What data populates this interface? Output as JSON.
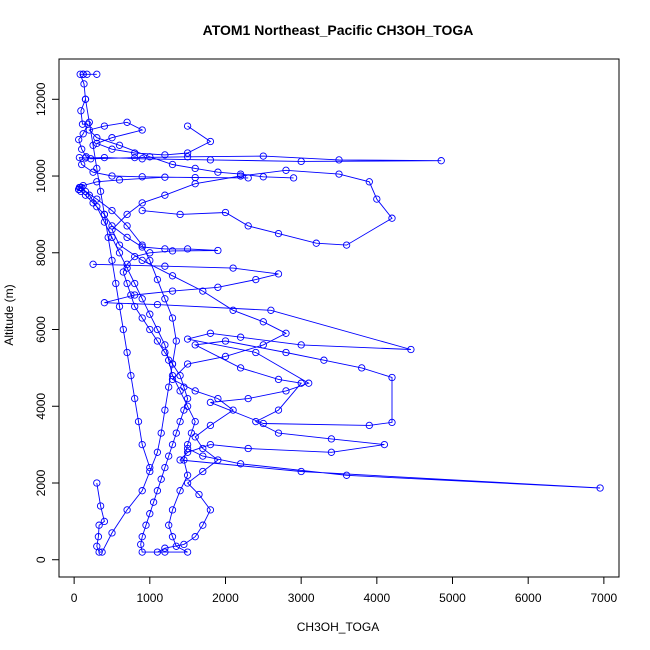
{
  "chart_data": {
    "type": "line",
    "title": "ATOM1 Northeast_Pacific CH3OH_TOGA",
    "xlabel": "CH3OH_TOGA",
    "ylabel": "Altitude (m)",
    "xlim": [
      -200,
      7200
    ],
    "ylim": [
      -450,
      13050
    ],
    "x_ticks": [
      0,
      1000,
      2000,
      3000,
      4000,
      5000,
      6000,
      7000
    ],
    "y_ticks": [
      0,
      2000,
      4000,
      6000,
      8000,
      10000,
      12000
    ],
    "grid": false,
    "legend": "none",
    "series_color": "#0000ff",
    "marker": "open-circle",
    "series": [
      {
        "points": [
          [
            120,
            12650
          ],
          [
            170,
            12650
          ],
          [
            300,
            12650
          ],
          [
            120,
            12650
          ],
          [
            80,
            12650
          ],
          [
            130,
            12400
          ],
          [
            150,
            12000
          ],
          [
            90,
            11700
          ],
          [
            110,
            11350
          ],
          [
            180,
            11350
          ],
          [
            120,
            11100
          ],
          [
            60,
            10950
          ],
          [
            100,
            10700
          ],
          [
            160,
            10500
          ],
          [
            220,
            10450
          ],
          [
            800,
            10480
          ],
          [
            1500,
            10500
          ],
          [
            2500,
            10520
          ],
          [
            3500,
            10420
          ],
          [
            4850,
            10400
          ],
          [
            3000,
            10380
          ],
          [
            1800,
            10420
          ],
          [
            900,
            10450
          ],
          [
            400,
            10480
          ],
          [
            150,
            10470
          ],
          [
            70,
            10480
          ],
          [
            100,
            10300
          ],
          [
            250,
            10100
          ],
          [
            500,
            10000
          ],
          [
            900,
            9980
          ],
          [
            1600,
            9960
          ],
          [
            2300,
            9950
          ],
          [
            1200,
            9970
          ],
          [
            600,
            9900
          ],
          [
            300,
            9850
          ],
          [
            120,
            9750
          ],
          [
            70,
            9700
          ],
          [
            60,
            9650
          ],
          [
            90,
            9600
          ],
          [
            150,
            9500
          ],
          [
            250,
            9300
          ],
          [
            400,
            9000
          ],
          [
            500,
            8700
          ],
          [
            700,
            8400
          ],
          [
            900,
            8150
          ],
          [
            1200,
            8100
          ],
          [
            1500,
            8100
          ],
          [
            1900,
            8060
          ],
          [
            1300,
            8050
          ],
          [
            1000,
            8000
          ],
          [
            800,
            7900
          ],
          [
            700,
            7700
          ],
          [
            650,
            7500
          ],
          [
            700,
            7200
          ],
          [
            750,
            6900
          ],
          [
            800,
            6600
          ],
          [
            900,
            6300
          ],
          [
            1000,
            6000
          ],
          [
            1100,
            5700
          ],
          [
            1200,
            5400
          ],
          [
            1300,
            5100
          ],
          [
            1400,
            4800
          ],
          [
            1450,
            4500
          ],
          [
            1500,
            4200
          ],
          [
            1450,
            3900
          ],
          [
            1400,
            3600
          ],
          [
            1350,
            3300
          ],
          [
            1300,
            3000
          ],
          [
            1250,
            2700
          ],
          [
            1200,
            2400
          ],
          [
            1150,
            2100
          ],
          [
            1100,
            1800
          ],
          [
            1050,
            1500
          ],
          [
            1000,
            1200
          ],
          [
            950,
            900
          ],
          [
            900,
            600
          ],
          [
            880,
            400
          ],
          [
            900,
            200
          ],
          [
            1200,
            200
          ],
          [
            1500,
            200
          ],
          [
            1350,
            350
          ],
          [
            1300,
            600
          ],
          [
            1250,
            900
          ],
          [
            1300,
            1300
          ],
          [
            1400,
            1800
          ],
          [
            1500,
            2200
          ],
          [
            1450,
            2600
          ],
          [
            1500,
            3000
          ],
          [
            1550,
            3300
          ],
          [
            1600,
            3600
          ],
          [
            1500,
            4000
          ],
          [
            1400,
            4400
          ],
          [
            1300,
            4800
          ],
          [
            1250,
            5200
          ],
          [
            1200,
            5600
          ],
          [
            1100,
            6000
          ],
          [
            1000,
            6400
          ],
          [
            900,
            6800
          ],
          [
            800,
            7200
          ],
          [
            700,
            7600
          ],
          [
            600,
            8000
          ],
          [
            500,
            8400
          ],
          [
            400,
            8800
          ],
          [
            300,
            9200
          ],
          [
            200,
            9500
          ],
          [
            100,
            9700
          ],
          [
            60,
            9650
          ]
        ]
      },
      {
        "points": [
          [
            250,
            7700
          ],
          [
            1200,
            7650
          ],
          [
            2100,
            7600
          ],
          [
            2700,
            7450
          ],
          [
            2400,
            7300
          ],
          [
            1900,
            7100
          ],
          [
            1300,
            7000
          ],
          [
            800,
            6900
          ],
          [
            400,
            6700
          ],
          [
            1100,
            6650
          ],
          [
            2600,
            6500
          ],
          [
            4450,
            5480
          ],
          [
            3000,
            5600
          ],
          [
            2200,
            5800
          ],
          [
            1800,
            5900
          ],
          [
            1500,
            5750
          ],
          [
            2400,
            5400
          ],
          [
            3100,
            4600
          ],
          [
            2800,
            4400
          ],
          [
            2300,
            4200
          ],
          [
            1800,
            4100
          ],
          [
            2500,
            3550
          ],
          [
            3900,
            3500
          ],
          [
            4200,
            3580
          ],
          [
            4200,
            4750
          ],
          [
            3800,
            5000
          ],
          [
            3300,
            5200
          ],
          [
            2800,
            5400
          ],
          [
            2000,
            5700
          ],
          [
            1600,
            5600
          ],
          [
            2200,
            5000
          ],
          [
            2700,
            4700
          ],
          [
            3000,
            4600
          ],
          [
            2700,
            3900
          ],
          [
            2400,
            3600
          ],
          [
            2700,
            3300
          ],
          [
            3400,
            3150
          ],
          [
            4100,
            3000
          ],
          [
            3400,
            2800
          ],
          [
            2300,
            2900
          ],
          [
            1800,
            3000
          ],
          [
            1500,
            2800
          ],
          [
            1400,
            2600
          ],
          [
            3000,
            2300
          ],
          [
            6950,
            1870
          ],
          [
            3600,
            2200
          ],
          [
            2200,
            2500
          ],
          [
            1700,
            2700
          ],
          [
            1500,
            2900
          ]
        ]
      },
      {
        "points": [
          [
            900,
            9100
          ],
          [
            1400,
            9000
          ],
          [
            2000,
            9050
          ],
          [
            2300,
            8700
          ],
          [
            2700,
            8500
          ],
          [
            3200,
            8250
          ],
          [
            3600,
            8200
          ],
          [
            4200,
            8900
          ],
          [
            4000,
            9400
          ],
          [
            3900,
            9850
          ],
          [
            3500,
            10050
          ],
          [
            2800,
            10150
          ],
          [
            2200,
            10000
          ],
          [
            1600,
            9800
          ],
          [
            1200,
            9500
          ],
          [
            900,
            9300
          ],
          [
            700,
            9000
          ],
          [
            500,
            8600
          ],
          [
            600,
            8200
          ],
          [
            900,
            7800
          ],
          [
            1300,
            7400
          ],
          [
            1700,
            7000
          ],
          [
            2100,
            6500
          ],
          [
            2500,
            6200
          ],
          [
            2800,
            5900
          ],
          [
            2500,
            5600
          ],
          [
            2000,
            5300
          ],
          [
            1500,
            5100
          ],
          [
            1300,
            4700
          ],
          [
            1600,
            4400
          ],
          [
            1900,
            4200
          ],
          [
            2100,
            3900
          ],
          [
            1800,
            3500
          ],
          [
            1600,
            3200
          ],
          [
            1700,
            2900
          ],
          [
            1900,
            2600
          ],
          [
            1700,
            2300
          ],
          [
            1500,
            2000
          ],
          [
            1650,
            1700
          ],
          [
            1800,
            1300
          ],
          [
            1700,
            900
          ],
          [
            1600,
            600
          ],
          [
            1450,
            400
          ],
          [
            1200,
            300
          ],
          [
            1100,
            200
          ]
        ]
      },
      {
        "points": [
          [
            300,
            2000
          ],
          [
            350,
            1400
          ],
          [
            400,
            1000
          ],
          [
            330,
            900
          ],
          [
            320,
            600
          ],
          [
            300,
            350
          ],
          [
            330,
            200
          ],
          [
            370,
            200
          ],
          [
            500,
            700
          ],
          [
            700,
            1300
          ],
          [
            900,
            1800
          ],
          [
            1000,
            2300
          ],
          [
            1100,
            2800
          ],
          [
            1150,
            3300
          ],
          [
            1200,
            3900
          ],
          [
            1250,
            4500
          ],
          [
            1300,
            5100
          ],
          [
            1350,
            5700
          ],
          [
            1300,
            6300
          ],
          [
            1200,
            6800
          ],
          [
            1100,
            7300
          ],
          [
            1000,
            7800
          ],
          [
            900,
            8200
          ],
          [
            700,
            8700
          ],
          [
            500,
            9100
          ],
          [
            300,
            9400
          ],
          [
            150,
            9600
          ],
          [
            80,
            9700
          ]
        ]
      },
      {
        "points": [
          [
            1000,
            2400
          ],
          [
            900,
            3000
          ],
          [
            850,
            3600
          ],
          [
            800,
            4200
          ],
          [
            750,
            4800
          ],
          [
            700,
            5400
          ],
          [
            650,
            6000
          ],
          [
            600,
            6600
          ],
          [
            550,
            7200
          ],
          [
            500,
            7800
          ],
          [
            450,
            8400
          ],
          [
            400,
            9000
          ],
          [
            350,
            9600
          ],
          [
            300,
            10200
          ],
          [
            250,
            10800
          ],
          [
            200,
            11400
          ],
          [
            150,
            12000
          ]
        ]
      },
      {
        "points": [
          [
            1500,
            11300
          ],
          [
            1800,
            10900
          ],
          [
            1500,
            10600
          ],
          [
            1200,
            10550
          ],
          [
            800,
            10600
          ],
          [
            500,
            10700
          ],
          [
            300,
            10850
          ],
          [
            500,
            11000
          ],
          [
            900,
            11200
          ],
          [
            700,
            11400
          ],
          [
            400,
            11300
          ],
          [
            200,
            11200
          ],
          [
            300,
            11000
          ],
          [
            600,
            10800
          ],
          [
            1000,
            10500
          ],
          [
            1300,
            10300
          ],
          [
            1600,
            10200
          ],
          [
            1900,
            10100
          ],
          [
            2200,
            10050
          ],
          [
            2500,
            9980
          ],
          [
            2900,
            9950
          ]
        ]
      }
    ]
  }
}
